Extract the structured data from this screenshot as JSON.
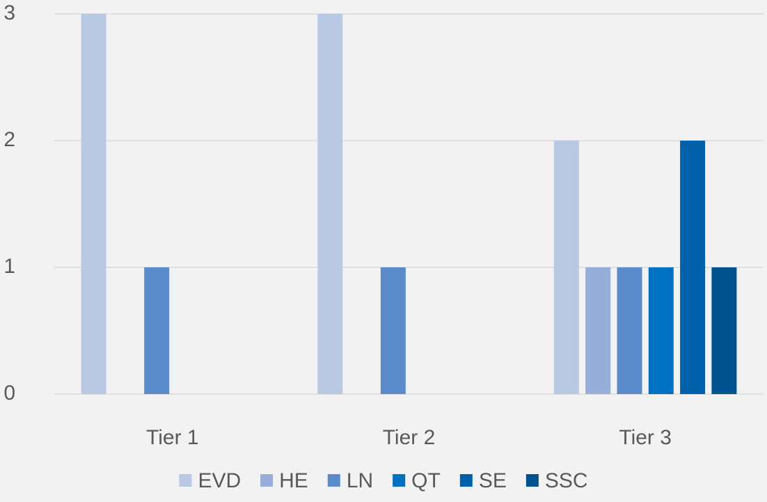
{
  "chart_data": {
    "type": "bar",
    "categories": [
      "Tier 1",
      "Tier 2",
      "Tier 3"
    ],
    "series": [
      {
        "name": "EVD",
        "color": "#b9c9e4",
        "values": [
          3,
          3,
          2
        ]
      },
      {
        "name": "HE",
        "color": "#97aed9",
        "values": [
          0,
          0,
          1
        ]
      },
      {
        "name": "LN",
        "color": "#5b8bca",
        "values": [
          1,
          1,
          1
        ]
      },
      {
        "name": "QT",
        "color": "#0070c0",
        "values": [
          0,
          0,
          1
        ]
      },
      {
        "name": "SE",
        "color": "#0060aa",
        "values": [
          0,
          0,
          2
        ]
      },
      {
        "name": "SSC",
        "color": "#00538f",
        "values": [
          0,
          0,
          1
        ]
      }
    ],
    "ylim": [
      0,
      3
    ],
    "yticks": [
      0,
      1,
      2,
      3
    ],
    "grid": true,
    "legend": "bottom"
  }
}
